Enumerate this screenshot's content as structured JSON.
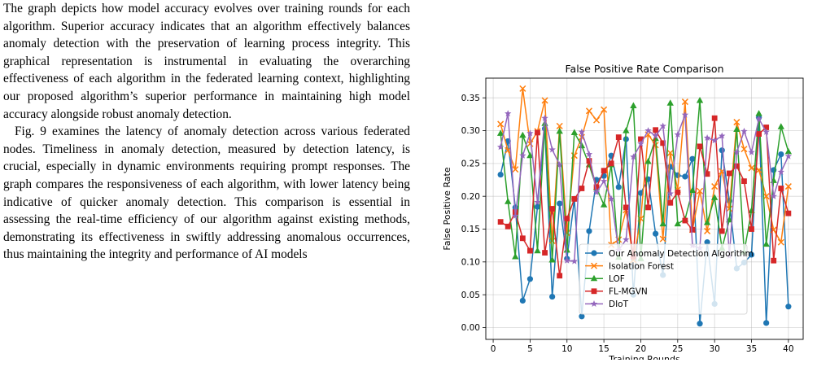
{
  "body_text": {
    "paragraphs": [
      "The graph depicts how model accuracy evolves over training rounds for each algorithm. Superior accuracy indicates that an algorithm effectively balances anomaly detection with the preservation of learning process integrity. This graphical representation is instrumental in evaluating the overarching effectiveness of each algorithm in the federated learning context, highlighting our proposed algorithm’s superior performance in maintaining high model accuracy alongside robust anomaly detection.",
      "Fig. 9 examines the latency of anomaly detection across various federated nodes. Timeliness in anomaly detection, measured by detection latency, is crucial, especially in dynamic environments requiring prompt responses. The graph compares the responsiveness of each algorithm, with lower latency being indicative of quicker anomaly detection. This comparison is essential in assessing the real-time efficiency of our algorithm against existing methods, demonstrating its effectiveness in swiftly addressing anomalous occurrences, thus maintaining the integrity and performance of AI models"
    ]
  },
  "chart_data": {
    "type": "line",
    "title": "False Positive Rate Comparison",
    "xlabel": "Training Rounds",
    "ylabel": "False Positive Rate",
    "xlim": [
      -1,
      42
    ],
    "ylim": [
      -0.018,
      0.38
    ],
    "xticks": [
      0,
      5,
      10,
      15,
      20,
      25,
      30,
      35,
      40
    ],
    "yticks": [
      0.0,
      0.05,
      0.1,
      0.15,
      0.2,
      0.25,
      0.3,
      0.35
    ],
    "ytick_labels": [
      "0.00",
      "0.05",
      "0.10",
      "0.15",
      "0.20",
      "0.25",
      "0.30",
      "0.35"
    ],
    "grid": true,
    "legend_position": "lower-center",
    "x": [
      1,
      2,
      3,
      4,
      5,
      6,
      7,
      8,
      9,
      10,
      11,
      12,
      13,
      14,
      15,
      16,
      17,
      18,
      19,
      20,
      21,
      22,
      23,
      24,
      25,
      26,
      27,
      28,
      29,
      30,
      31,
      32,
      33,
      34,
      35,
      36,
      37,
      38,
      39,
      40
    ],
    "series": [
      {
        "name": "Our Anomaly Detection Algorithm",
        "color": "#1f77b4",
        "marker": "circle",
        "values": [
          0.233,
          0.284,
          0.183,
          0.041,
          0.074,
          0.184,
          0.303,
          0.047,
          0.189,
          0.105,
          0.196,
          0.017,
          0.147,
          0.225,
          0.231,
          0.262,
          0.214,
          0.287,
          0.05,
          0.205,
          0.226,
          0.143,
          0.08,
          0.245,
          0.232,
          0.23,
          0.257,
          0.006,
          0.13,
          0.036,
          0.27,
          0.193,
          0.09,
          0.099,
          0.111,
          0.32,
          0.007,
          0.24,
          0.264,
          0.032
        ]
      },
      {
        "name": "Isolation Forest",
        "color": "#ff7f0e",
        "marker": "x",
        "values": [
          0.31,
          0.27,
          0.241,
          0.364,
          0.28,
          0.299,
          0.346,
          0.132,
          0.307,
          0.144,
          0.262,
          0.29,
          0.33,
          0.316,
          0.332,
          0.126,
          0.134,
          0.179,
          0.103,
          0.166,
          0.294,
          0.278,
          0.135,
          0.266,
          0.21,
          0.344,
          0.149,
          0.208,
          0.147,
          0.215,
          0.238,
          0.181,
          0.313,
          0.272,
          0.243,
          0.24,
          0.2,
          0.149,
          0.13,
          0.215
        ]
      },
      {
        "name": "LOF",
        "color": "#2ca02c",
        "marker": "triangle",
        "values": [
          0.296,
          0.192,
          0.108,
          0.293,
          0.262,
          0.117,
          0.311,
          0.103,
          0.299,
          0.118,
          0.297,
          0.277,
          0.248,
          0.213,
          0.187,
          0.248,
          0.107,
          0.3,
          0.338,
          0.105,
          0.253,
          0.288,
          0.158,
          0.342,
          0.158,
          0.165,
          0.209,
          0.346,
          0.16,
          0.198,
          0.121,
          0.164,
          0.302,
          0.115,
          0.178,
          0.326,
          0.127,
          0.224,
          0.306,
          0.268
        ]
      },
      {
        "name": "FL-MGVN",
        "color": "#d62728",
        "marker": "square",
        "values": [
          0.161,
          0.154,
          0.176,
          0.136,
          0.117,
          0.297,
          0.114,
          0.181,
          0.079,
          0.166,
          0.196,
          0.212,
          0.254,
          0.214,
          0.239,
          0.25,
          0.29,
          0.183,
          0.108,
          0.287,
          0.183,
          0.301,
          0.281,
          0.19,
          0.206,
          0.163,
          0.149,
          0.276,
          0.234,
          0.319,
          0.147,
          0.235,
          0.246,
          0.223,
          0.15,
          0.295,
          0.305,
          0.102,
          0.212,
          0.174
        ]
      },
      {
        "name": "DIoT",
        "color": "#9467bd",
        "marker": "star",
        "values": [
          0.275,
          0.326,
          0.17,
          0.262,
          0.296,
          0.191,
          0.319,
          0.271,
          0.248,
          0.102,
          0.101,
          0.298,
          0.264,
          0.206,
          0.223,
          0.196,
          0.118,
          0.134,
          0.26,
          0.28,
          0.3,
          0.292,
          0.307,
          0.204,
          0.294,
          0.324,
          0.125,
          0.121,
          0.289,
          0.285,
          0.292,
          0.109,
          0.267,
          0.299,
          0.267,
          0.318,
          0.298,
          0.2,
          0.237,
          0.261
        ]
      }
    ]
  }
}
